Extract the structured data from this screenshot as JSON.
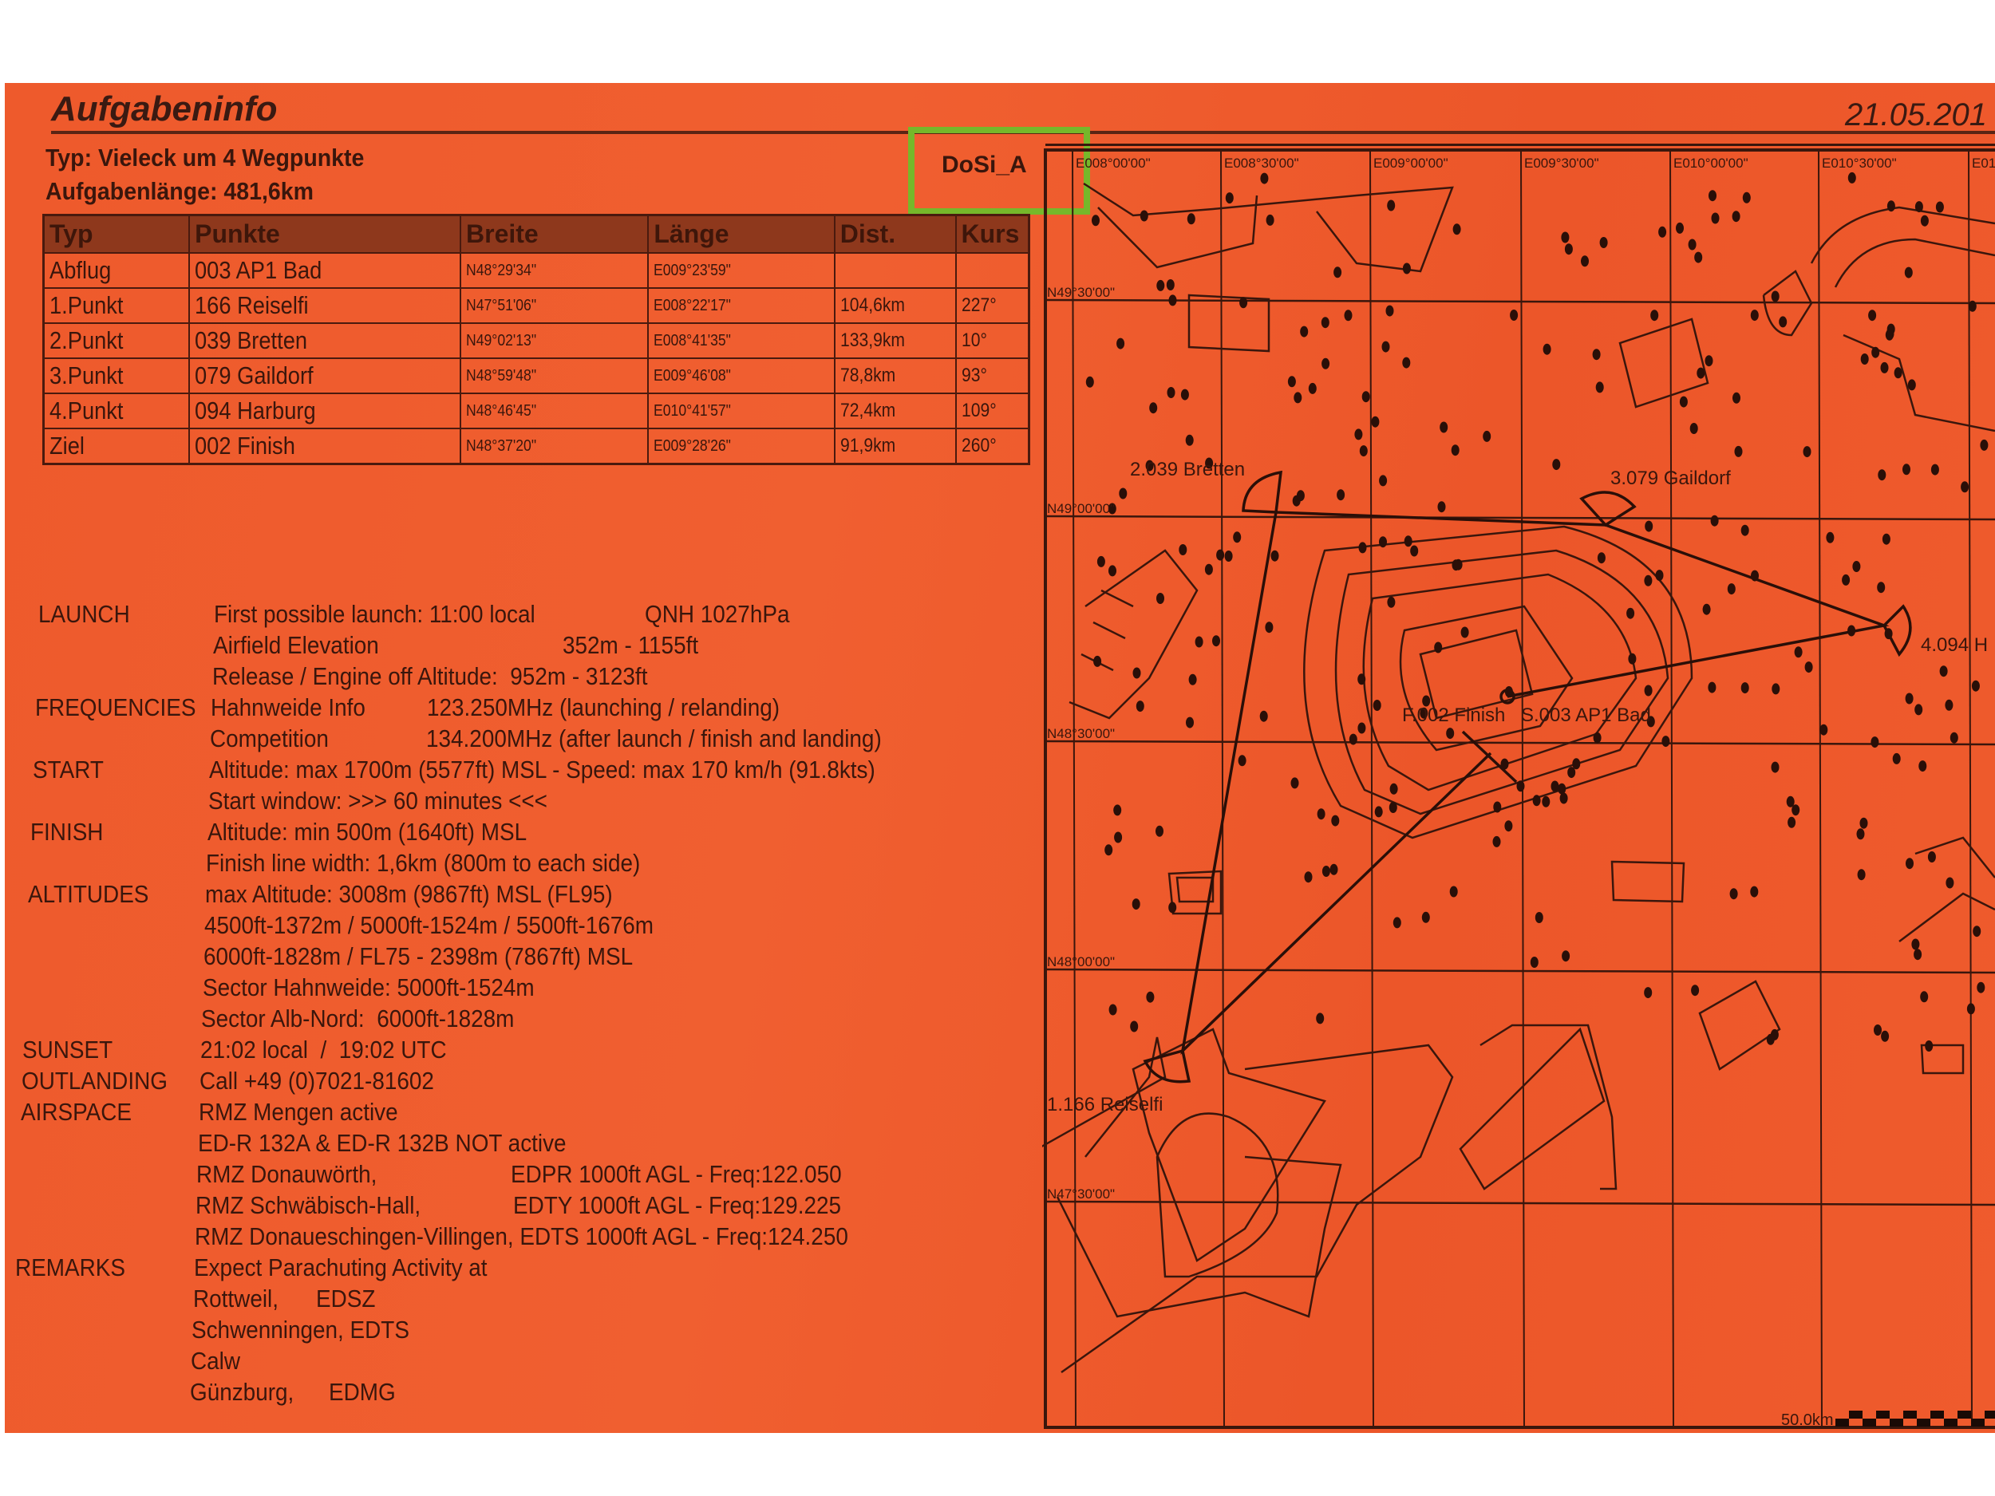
{
  "header": {
    "title": "Aufgabeninfo",
    "date": "21.05.201",
    "type_line": "Typ: Vieleck um 4 Wegpunkte",
    "length_line": "Aufgabenlänge: 481,6km",
    "task_code": "DoSi_A",
    "highlight_color": "#76b82a"
  },
  "table": {
    "headers": [
      "Typ",
      "Punkte",
      "Breite",
      "Länge",
      "Dist.",
      "Kurs"
    ],
    "rows": [
      [
        "Abflug",
        "003 AP1 Bad",
        "N48°29'34\"",
        "E009°23'59\"",
        "",
        ""
      ],
      [
        "1.Punkt",
        "166 Reiselfi",
        "N47°51'06\"",
        "E008°22'17\"",
        "104,6km",
        "227°"
      ],
      [
        "2.Punkt",
        "039 Bretten",
        "N49°02'13\"",
        "E008°41'35\"",
        "133,9km",
        "10°"
      ],
      [
        "3.Punkt",
        "079 Gaildorf",
        "N48°59'48\"",
        "E009°46'08\"",
        "78,8km",
        "93°"
      ],
      [
        "4.Punkt",
        "094 Harburg",
        "N48°46'45\"",
        "E010°41'57\"",
        "72,4km",
        "109°"
      ],
      [
        "Ziel",
        "002 Finish",
        "N48°37'20\"",
        "E009°28'26\"",
        "91,9km",
        "260°"
      ]
    ]
  },
  "info": [
    {
      "label": "LAUNCH",
      "text": "First possible launch: 11:00 local",
      "text2": "QNH 1027hPa"
    },
    {
      "text": "Airfield Elevation",
      "text2": "352m - 1155ft"
    },
    {
      "text": "Release / Engine off Altitude:  952m - 3123ft"
    },
    {
      "label": "FREQUENCIES",
      "text": "Hahnweide Info",
      "text2": "123.250MHz (launching / relanding)"
    },
    {
      "text": "Competition",
      "text2": "134.200MHz (after launch / finish and landing)"
    },
    {
      "label": "START",
      "text": "Altitude: max 1700m (5577ft) MSL - Speed: max 170 km/h (91.8kts)"
    },
    {
      "text": "Start window: >>> 60 minutes <<<"
    },
    {
      "label": "FINISH",
      "text": "Altitude: min 500m (1640ft) MSL"
    },
    {
      "text": "Finish line width: 1,6km (800m to each side)"
    },
    {
      "label": "ALTITUDES",
      "text": "max Altitude: 3008m (9867ft) MSL (FL95)"
    },
    {
      "text": "4500ft-1372m / 5000ft-1524m / 5500ft-1676m"
    },
    {
      "text": "6000ft-1828m / FL75 - 2398m (7867ft) MSL"
    },
    {
      "text": "Sector Hahnweide: 5000ft-1524m"
    },
    {
      "text": "Sector Alb-Nord:  6000ft-1828m"
    },
    {
      "label": "SUNSET",
      "text": "21:02 local  /  19:02 UTC"
    },
    {
      "label": "OUTLANDING",
      "text": "Call +49 (0)7021-81602"
    },
    {
      "label": "AIRSPACE",
      "text": "RMZ Mengen active"
    },
    {
      "text": "ED-R 132A & ED-R 132B NOT active"
    },
    {
      "text": "RMZ Donauwörth,",
      "text2": "EDPR 1000ft AGL - Freq:122.050"
    },
    {
      "text": "RMZ Schwäbisch-Hall,",
      "text2": "EDTY 1000ft AGL - Freq:129.225"
    },
    {
      "text": "RMZ Donaueschingen-Villingen, EDTS 1000ft AGL - Freq:124.250"
    },
    {
      "label": "REMARKS",
      "text": "Expect Parachuting Activity at"
    },
    {
      "text": "Rottweil,",
      "text2": "EDSZ"
    },
    {
      "text": "Schwenningen, EDTS"
    },
    {
      "text": "Calw"
    },
    {
      "text": "Günzburg,",
      "text2": "EDMG"
    }
  ],
  "map": {
    "lon_labels": [
      "E008°00'00\"",
      "E008°30'00\"",
      "E009°00'00\"",
      "E009°30'00\"",
      "E010°00'00\"",
      "E010°30'00\"",
      "E01"
    ],
    "lat_labels": [
      "N49°30'00\"",
      "N49°00'00\"",
      "N48°30'00\"",
      "N48°00'00\"",
      "N47°30'00\""
    ],
    "waypoints": {
      "bretten": "2.039 Bretten",
      "gaildorf": "3.079 Gaildorf",
      "harburg": "4.094 H",
      "finish": "F.002 Finish",
      "start": "S.003 AP1 Bad",
      "reiselfi": "1.166 Reiselfi"
    },
    "scale_label": "50.0km"
  },
  "colors": {
    "paper": "#ee5a2c",
    "ink": "#3a160c",
    "table_header": "#8e381c"
  }
}
